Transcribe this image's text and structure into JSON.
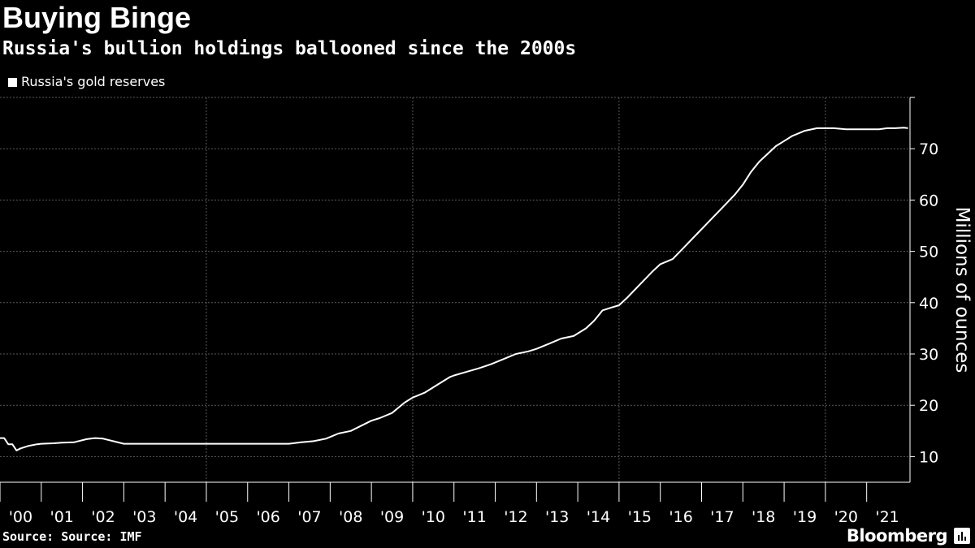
{
  "header": {
    "title": "Buying Binge",
    "subtitle": "Russia's bullion holdings ballooned since the 2000s"
  },
  "legend": {
    "label": "Russia's gold reserves",
    "color": "#ffffff"
  },
  "footer": {
    "source": "Source: Source: IMF",
    "brand": "Bloomberg"
  },
  "chart_data": {
    "type": "line",
    "title": "Buying Binge",
    "subtitle": "Russia's bullion holdings ballooned since the 2000s",
    "ylabel": "Millions of ounces",
    "xlabel": "",
    "ylim": [
      5,
      80
    ],
    "yticks": [
      10,
      20,
      30,
      40,
      50,
      60,
      70
    ],
    "xlim": [
      2000,
      2022.05
    ],
    "xtick_labels": [
      "'00",
      "'01",
      "'02",
      "'03",
      "'04",
      "'05",
      "'06",
      "'07",
      "'08",
      "'09",
      "'10",
      "'11",
      "'12",
      "'13",
      "'14",
      "'15",
      "'16",
      "'17",
      "'18",
      "'19",
      "'20",
      "'21"
    ],
    "grid": true,
    "legend_position": "top-left",
    "series": [
      {
        "name": "Russia's gold reserves",
        "color": "#ffffff",
        "x": [
          2000.0,
          2000.1,
          2000.2,
          2000.3,
          2000.4,
          2000.5,
          2000.7,
          2000.9,
          2001.0,
          2001.3,
          2001.5,
          2001.8,
          2002.1,
          2002.3,
          2002.5,
          2003.0,
          2003.5,
          2004.0,
          2004.5,
          2005.0,
          2005.6,
          2006.0,
          2006.5,
          2006.8,
          2007.0,
          2007.3,
          2007.6,
          2007.9,
          2008.2,
          2008.5,
          2008.8,
          2009.0,
          2009.2,
          2009.5,
          2009.8,
          2010.0,
          2010.3,
          2010.6,
          2010.9,
          2011.0,
          2011.3,
          2011.6,
          2011.9,
          2012.2,
          2012.5,
          2012.8,
          2013.0,
          2013.3,
          2013.6,
          2013.9,
          2014.2,
          2014.4,
          2014.6,
          2014.8,
          2015.0,
          2015.2,
          2015.5,
          2015.8,
          2016.0,
          2016.3,
          2016.6,
          2016.9,
          2017.2,
          2017.5,
          2017.8,
          2018.0,
          2018.2,
          2018.4,
          2018.6,
          2018.8,
          2019.0,
          2019.2,
          2019.5,
          2019.8,
          2020.0,
          2020.2,
          2020.5,
          2020.8,
          2021.0,
          2021.3,
          2021.5,
          2021.7,
          2021.9,
          2022.0
        ],
        "values": [
          13.6,
          13.6,
          12.4,
          12.4,
          11.2,
          11.6,
          12.1,
          12.4,
          12.5,
          12.6,
          12.7,
          12.8,
          13.4,
          13.6,
          13.5,
          12.5,
          12.5,
          12.5,
          12.5,
          12.5,
          12.5,
          12.5,
          12.5,
          12.5,
          12.5,
          12.8,
          13.0,
          13.5,
          14.5,
          15.0,
          16.2,
          17.0,
          17.5,
          18.5,
          20.5,
          21.5,
          22.5,
          24.0,
          25.5,
          25.8,
          26.5,
          27.2,
          28.0,
          29.0,
          30.0,
          30.5,
          31.0,
          32.0,
          33.0,
          33.5,
          35.0,
          36.5,
          38.5,
          39.0,
          39.5,
          41.0,
          43.5,
          46.0,
          47.5,
          48.5,
          51.0,
          53.5,
          56.0,
          58.5,
          61.0,
          63.0,
          65.5,
          67.5,
          69.0,
          70.5,
          71.5,
          72.5,
          73.5,
          74.0,
          74.0,
          74.0,
          73.8,
          73.8,
          73.8,
          73.8,
          74.0,
          74.0,
          74.1,
          74.0
        ]
      }
    ]
  }
}
